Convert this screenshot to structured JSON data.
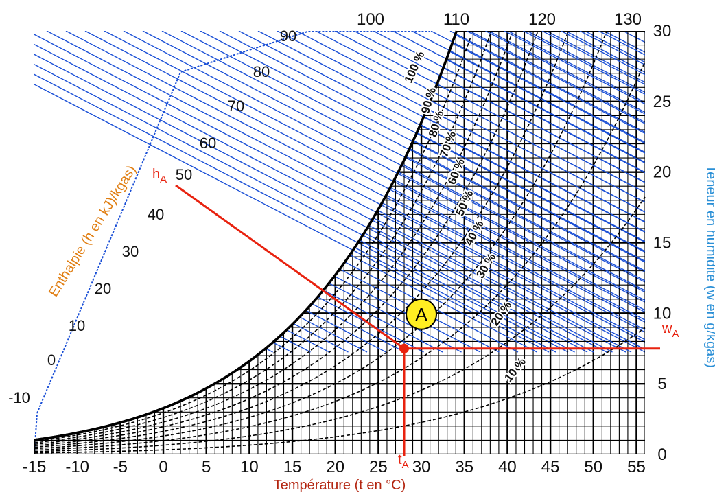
{
  "chart_data": {
    "type": "line",
    "subtype": "psychrometric",
    "xlabel": "Température (t en °C)",
    "ylabel": "Teneur en humidité (w en g/kgas)",
    "enthalpy_label": "Enthalpie (h en kJ)/kgas)",
    "xlim": [
      -15,
      56
    ],
    "ylim": [
      0,
      30
    ],
    "x_ticks": [
      "-15",
      "-10",
      "-5",
      "0",
      "5",
      "10",
      "15",
      "20",
      "25",
      "30",
      "35",
      "40",
      "45",
      "50",
      "55"
    ],
    "y_ticks": [
      "0",
      "5",
      "10",
      "15",
      "20",
      "25",
      "30"
    ],
    "top_ticks": [
      "100",
      "110",
      "120",
      "130"
    ],
    "enthalpy_ticks": [
      "-10",
      "0",
      "10",
      "20",
      "30",
      "40",
      "50",
      "60",
      "70",
      "80",
      "90"
    ],
    "rh_curves": [
      {
        "name": "10 %",
        "rh": 10
      },
      {
        "name": "20 %",
        "rh": 20
      },
      {
        "name": "30 %",
        "rh": 30
      },
      {
        "name": "40 %",
        "rh": 40
      },
      {
        "name": "50 %",
        "rh": 50
      },
      {
        "name": "60 %",
        "rh": 60
      },
      {
        "name": "70 %",
        "rh": 70
      },
      {
        "name": "80 %",
        "rh": 80
      },
      {
        "name": "90 %",
        "rh": 90
      },
      {
        "name": "100 %",
        "rh": 100
      }
    ],
    "point_A": {
      "label": "A",
      "t": 28,
      "w": 7.5,
      "h": 47
    },
    "marker_labels": {
      "t": "t",
      "w": "w",
      "h": "h",
      "sub": "A"
    },
    "colors": {
      "grid": "#000000",
      "enthalpy": "#1a4fd6",
      "marker": "#e8220f",
      "x_title": "#b32510",
      "y_title": "#2a8fd6",
      "h_title": "#e07e12",
      "point_fill": "#ffee22"
    }
  }
}
